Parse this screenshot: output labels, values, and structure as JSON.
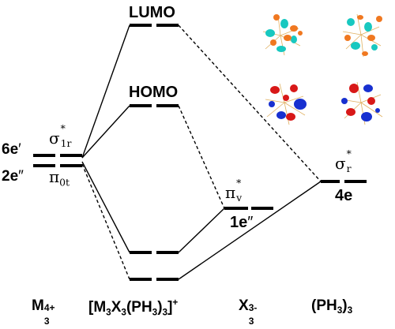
{
  "levels": {
    "lumo": "LUMO",
    "homo": "HOMO",
    "left_6e": "6e",
    "left_6e_prime": "′",
    "left_2e": "2e",
    "left_2e_dprime": "″",
    "sigma1r_sym": "σ",
    "sigma1r_star": "*",
    "sigma1r_sub": "1r",
    "pi0t_sym": "π",
    "pi0t_sub": "0t",
    "piv_sym": "π",
    "piv_star": "*",
    "piv_sub": "v",
    "one_e": "1e",
    "one_e_dprime": "″",
    "sigmar_sym": "σ",
    "sigmar_star": "*",
    "sigmar_sub": "r",
    "four_e": "4e"
  },
  "columns": {
    "m_base": "M",
    "m_sub": "3",
    "m_sup": "4+",
    "complex_open": "[M",
    "complex_sub1": "3",
    "complex_x": "X",
    "complex_sub2": "3",
    "complex_ph": "(PH",
    "complex_sub3": "3",
    "complex_close": ")",
    "complex_sub4": "3",
    "complex_bracket": "]",
    "complex_sup": "+",
    "x_base": "X",
    "x_sub": "3",
    "x_sup": "3-",
    "ph_base": "(PH",
    "ph_sub": "3",
    "ph_close": ")",
    "ph_sub2": "3"
  },
  "orbitals": [
    {
      "name": "lumo-orbital-1",
      "lobe_a": "#18c8c0",
      "lobe_b": "#f07820"
    },
    {
      "name": "lumo-orbital-2",
      "lobe_a": "#18c8c0",
      "lobe_b": "#f07820"
    },
    {
      "name": "homo-orbital-1",
      "lobe_a": "#d81818",
      "lobe_b": "#1830d0"
    },
    {
      "name": "homo-orbital-2",
      "lobe_a": "#d81818",
      "lobe_b": "#1830d0"
    }
  ]
}
